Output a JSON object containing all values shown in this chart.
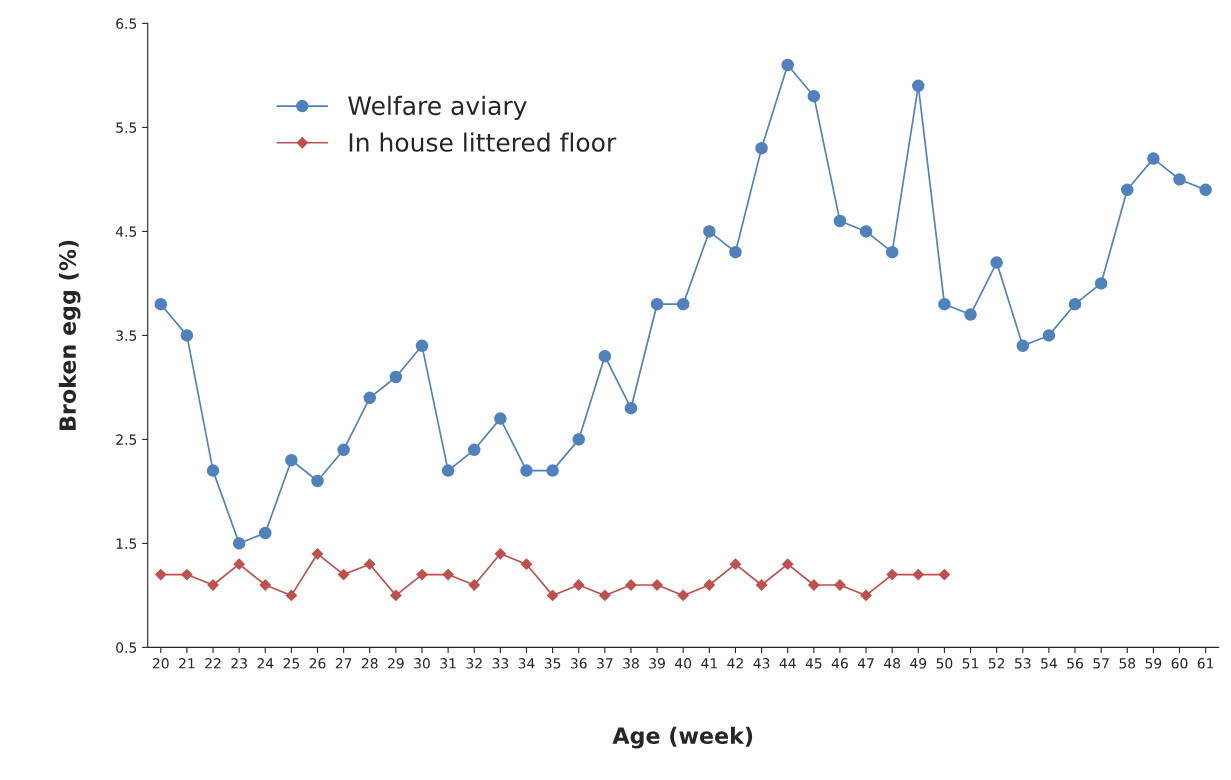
{
  "chart_data": {
    "type": "line",
    "xlabel": "Age (week)",
    "ylabel": "Broken egg (%)",
    "categories": [
      "20",
      "21",
      "22",
      "23",
      "24",
      "25",
      "26",
      "27",
      "28",
      "29",
      "30",
      "31",
      "32",
      "33",
      "34",
      "35",
      "36",
      "37",
      "38",
      "39",
      "40",
      "41",
      "42",
      "43",
      "44",
      "45",
      "46",
      "47",
      "48",
      "49",
      "50",
      "51",
      "52",
      "53",
      "54",
      "56",
      "57",
      "58",
      "59",
      "60",
      "61"
    ],
    "series": [
      {
        "name": "Welfare aviary",
        "color": "#4f81bd",
        "marker": "circle",
        "values": [
          3.8,
          3.5,
          2.2,
          1.5,
          1.6,
          2.3,
          2.1,
          2.4,
          2.9,
          3.1,
          3.4,
          2.2,
          2.4,
          2.7,
          2.2,
          2.2,
          2.5,
          3.3,
          2.8,
          3.8,
          3.8,
          4.5,
          4.3,
          5.3,
          6.1,
          5.8,
          4.6,
          4.5,
          4.3,
          5.9,
          3.8,
          3.7,
          4.2,
          3.4,
          3.5,
          3.8,
          4.0,
          4.9,
          5.2,
          5.0,
          4.9
        ]
      },
      {
        "name": "In house littered floor",
        "color": "#c0504d",
        "marker": "diamond",
        "values": [
          1.2,
          1.2,
          1.1,
          1.3,
          1.1,
          1.0,
          1.4,
          1.2,
          1.3,
          1.0,
          1.2,
          1.2,
          1.1,
          1.4,
          1.3,
          1.0,
          1.1,
          1.0,
          1.1,
          1.1,
          1.0,
          1.1,
          1.3,
          1.1,
          1.3,
          1.1,
          1.1,
          1.0,
          1.2,
          1.2,
          1.2,
          null,
          null,
          null,
          null,
          null,
          null,
          null,
          null,
          null,
          null
        ]
      }
    ],
    "ylim": [
      0.5,
      6.5
    ],
    "yticks": [
      0.5,
      1.5,
      2.5,
      3.5,
      4.5,
      5.5,
      6.5
    ],
    "grid": false,
    "legend": "top left"
  }
}
